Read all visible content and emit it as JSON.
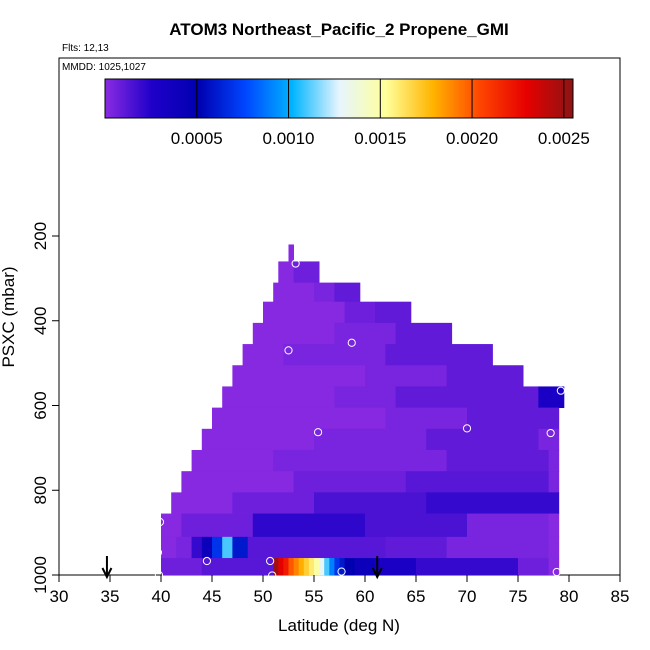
{
  "chart_data": {
    "type": "heatmap",
    "title": "ATOM3 Northeast_Pacific_2 Propene_GMI",
    "flights_label": "Flts: 12,13",
    "mmdd_label": "MMDD: 1025,1027",
    "xlabel": "Latitude (deg N)",
    "ylabel": "PSXC (mbar)",
    "xlim": [
      30,
      85
    ],
    "ylim": [
      1000,
      100
    ],
    "x_ticks": [
      30,
      35,
      40,
      45,
      50,
      55,
      60,
      65,
      70,
      75,
      80,
      85
    ],
    "y_ticks": [
      200,
      400,
      600,
      800,
      1000
    ],
    "colorbar": {
      "range": [
        0,
        0.00255
      ],
      "ticks": [
        0.0005,
        0.001,
        0.0015,
        0.002,
        0.0025
      ],
      "tick_labels": [
        "0.0005",
        "0.0010",
        "0.0015",
        "0.0020",
        "0.0025"
      ],
      "colors": [
        "#8a2be2",
        "#1f00c8",
        "#0000b0",
        "#0046ff",
        "#00b4ff",
        "#e6f5ff",
        "#ffff9b",
        "#ffb400",
        "#ff4600",
        "#e60000",
        "#8c1414"
      ]
    },
    "bands": [
      {
        "p_top": 220,
        "p_bot": 260,
        "segments": [
          [
            52.5,
            53.0,
            1e-05
          ]
        ]
      },
      {
        "p_top": 260,
        "p_bot": 310,
        "segments": [
          [
            51.5,
            53.0,
            1e-05
          ],
          [
            53.0,
            55.5,
            7e-05
          ]
        ]
      },
      {
        "p_top": 310,
        "p_bot": 355,
        "segments": [
          [
            51.0,
            55.0,
            1e-05
          ],
          [
            55.0,
            57.0,
            4e-05
          ],
          [
            57.0,
            59.5,
            0.0001
          ]
        ]
      },
      {
        "p_top": 355,
        "p_bot": 405,
        "segments": [
          [
            50.0,
            58.0,
            1e-05
          ],
          [
            58.0,
            61.0,
            7e-05
          ],
          [
            61.0,
            64.5,
            0.0001
          ]
        ]
      },
      {
        "p_top": 405,
        "p_bot": 455,
        "segments": [
          [
            49.0,
            57.0,
            1e-05
          ],
          [
            57.0,
            63.0,
            4e-05
          ],
          [
            63.0,
            68.5,
            0.0001
          ]
        ]
      },
      {
        "p_top": 455,
        "p_bot": 505,
        "segments": [
          [
            48.0,
            52.0,
            1e-05
          ],
          [
            52.0,
            62.0,
            4e-05
          ],
          [
            62.0,
            72.5,
            0.0001
          ]
        ]
      },
      {
        "p_top": 505,
        "p_bot": 555,
        "segments": [
          [
            47.0,
            60.0,
            1e-05
          ],
          [
            60.0,
            68.0,
            4e-05
          ],
          [
            68.0,
            75.5,
            0.0001
          ]
        ]
      },
      {
        "p_top": 555,
        "p_bot": 605,
        "segments": [
          [
            46.0,
            57.0,
            1e-05
          ],
          [
            57.0,
            63.0,
            4e-05
          ],
          [
            63.0,
            77.0,
            0.0001
          ],
          [
            77.0,
            79.5,
            0.0003
          ]
        ]
      },
      {
        "p_top": 605,
        "p_bot": 655,
        "segments": [
          [
            45.0,
            62.0,
            1e-05
          ],
          [
            62.0,
            70.0,
            4e-05
          ],
          [
            70.0,
            79.0,
            0.0001
          ]
        ]
      },
      {
        "p_top": 655,
        "p_bot": 705,
        "segments": [
          [
            44.0,
            55.0,
            1e-05
          ],
          [
            55.0,
            66.0,
            4e-05
          ],
          [
            66.0,
            77.0,
            0.0001
          ],
          [
            77.0,
            79.0,
            4e-05
          ]
        ]
      },
      {
        "p_top": 705,
        "p_bot": 755,
        "segments": [
          [
            43.0,
            51.0,
            1e-05
          ],
          [
            51.0,
            68.0,
            4e-05
          ],
          [
            68.0,
            78.0,
            0.0001
          ],
          [
            78.0,
            79.0,
            4e-05
          ]
        ]
      },
      {
        "p_top": 755,
        "p_bot": 805,
        "segments": [
          [
            42.0,
            53.0,
            1e-05
          ],
          [
            53.0,
            64.0,
            7e-05
          ],
          [
            64.0,
            78.0,
            0.00012
          ],
          [
            78.0,
            79.0,
            4e-05
          ]
        ]
      },
      {
        "p_top": 805,
        "p_bot": 855,
        "segments": [
          [
            41.0,
            47.0,
            1e-05
          ],
          [
            47.0,
            55.0,
            7e-05
          ],
          [
            55.0,
            66.0,
            0.00015
          ],
          [
            66.0,
            79.0,
            0.0002
          ]
        ]
      },
      {
        "p_top": 855,
        "p_bot": 910,
        "segments": [
          [
            40.0,
            42.0,
            1e-05
          ],
          [
            42.0,
            49.0,
            7e-05
          ],
          [
            49.0,
            60.0,
            0.00022
          ],
          [
            60.0,
            70.0,
            0.00015
          ],
          [
            70.0,
            78.0,
            4e-05
          ],
          [
            78.0,
            79.0,
            1e-05
          ]
        ]
      },
      {
        "p_top": 910,
        "p_bot": 960,
        "segments": [
          [
            40.0,
            41.5,
            1e-05
          ],
          [
            41.5,
            43.0,
            4e-05
          ],
          [
            43.0,
            44.0,
            0.0002
          ],
          [
            44.0,
            45.0,
            0.0004
          ],
          [
            45.0,
            46.0,
            0.0007
          ],
          [
            46.0,
            47.0,
            0.0011
          ],
          [
            47.0,
            48.5,
            0.0006
          ],
          [
            48.5,
            53.0,
            0.00012
          ],
          [
            53.0,
            62.0,
            0.00012
          ],
          [
            62.0,
            68.0,
            0.0001
          ],
          [
            68.0,
            78.0,
            4e-05
          ],
          [
            78.0,
            79.0,
            1e-05
          ]
        ]
      },
      {
        "p_top": 960,
        "p_bot": 1000,
        "segments": [
          [
            40.0,
            44.0,
            7e-05
          ],
          [
            44.0,
            51.0,
            0.00012
          ],
          [
            51.0,
            51.5,
            0.0025
          ],
          [
            51.5,
            52.0,
            0.0023
          ],
          [
            52.0,
            52.5,
            0.0022
          ],
          [
            52.5,
            53.0,
            0.002
          ],
          [
            53.0,
            53.5,
            0.0019
          ],
          [
            53.5,
            54.0,
            0.0018
          ],
          [
            54.0,
            54.5,
            0.0017
          ],
          [
            54.5,
            55.0,
            0.0016
          ],
          [
            55.0,
            55.5,
            0.0015
          ],
          [
            55.5,
            56.0,
            0.0013
          ],
          [
            56.0,
            56.5,
            0.0011
          ],
          [
            56.5,
            57.0,
            0.0009
          ],
          [
            57.0,
            57.5,
            0.0007
          ],
          [
            57.5,
            58.0,
            0.0006
          ],
          [
            58.0,
            59.0,
            0.0005
          ],
          [
            59.0,
            61.0,
            0.0004
          ],
          [
            61.0,
            65.0,
            0.0003
          ],
          [
            65.0,
            75.0,
            0.0002
          ],
          [
            75.0,
            78.0,
            7e-05
          ],
          [
            78.0,
            79.0,
            1e-05
          ]
        ]
      }
    ],
    "sample_points": [
      {
        "lat": 53.2,
        "p": 265
      },
      {
        "lat": 52.5,
        "p": 470
      },
      {
        "lat": 58.7,
        "p": 452
      },
      {
        "lat": 55.4,
        "p": 663
      },
      {
        "lat": 70.0,
        "p": 654
      },
      {
        "lat": 78.2,
        "p": 665
      },
      {
        "lat": 79.2,
        "p": 565
      },
      {
        "lat": 39.9,
        "p": 875
      },
      {
        "lat": 39.7,
        "p": 947
      },
      {
        "lat": 44.5,
        "p": 967
      },
      {
        "lat": 39.8,
        "p": 1000
      },
      {
        "lat": 50.7,
        "p": 967
      },
      {
        "lat": 50.9,
        "p": 1001
      },
      {
        "lat": 57.7,
        "p": 992
      },
      {
        "lat": 78.8,
        "p": 993
      }
    ],
    "arrows": [
      {
        "lat": 34.7
      },
      {
        "lat": 61.2
      }
    ]
  }
}
